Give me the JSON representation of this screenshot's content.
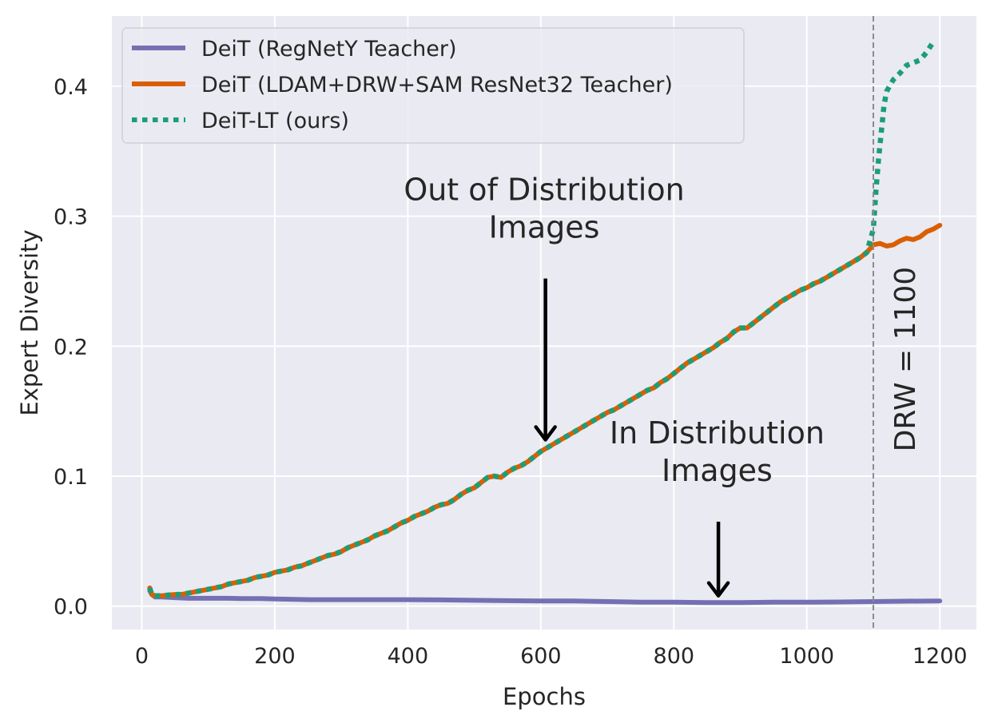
{
  "chart_data": {
    "type": "line",
    "title": "",
    "xlabel": "Epochs",
    "ylabel": "Expert Diversity",
    "xlim": [
      -45,
      1255
    ],
    "ylim": [
      -0.018,
      0.454
    ],
    "xticks": [
      0,
      200,
      400,
      600,
      800,
      1000,
      1200
    ],
    "xtick_labels": [
      "0",
      "200",
      "400",
      "600",
      "800",
      "1000",
      "1200"
    ],
    "yticks": [
      0.0,
      0.1,
      0.2,
      0.3,
      0.4
    ],
    "ytick_labels": [
      "0.0",
      "0.1",
      "0.2",
      "0.3",
      "0.4"
    ],
    "grid": true,
    "legend_position": "top-left",
    "colors": {
      "plot_bg": "#eaeaf2",
      "grid": "#ffffff",
      "regnety": "#7570b3",
      "ldam": "#d95f02",
      "deit_lt": "#1b9e77",
      "vline": "#8c8c8c",
      "arrow": "#000000"
    },
    "series": [
      {
        "name": "DeiT (RegNetY Teacher)",
        "style": "solid",
        "x": [
          12,
          15,
          20,
          30,
          50,
          70,
          100,
          130,
          150,
          180,
          200,
          250,
          300,
          350,
          400,
          450,
          500,
          550,
          600,
          650,
          700,
          750,
          800,
          850,
          900,
          950,
          1000,
          1050,
          1100,
          1150,
          1200
        ],
        "y": [
          0.012,
          0.009,
          0.007,
          0.007,
          0.0065,
          0.006,
          0.006,
          0.006,
          0.0058,
          0.0058,
          0.0055,
          0.005,
          0.005,
          0.005,
          0.005,
          0.0048,
          0.0045,
          0.0042,
          0.004,
          0.004,
          0.0035,
          0.003,
          0.003,
          0.0028,
          0.0028,
          0.003,
          0.003,
          0.0032,
          0.0035,
          0.0038,
          0.004
        ]
      },
      {
        "name": "DeiT (LDAM+DRW+SAM ResNet32 Teacher)",
        "style": "solid",
        "x": [
          12,
          15,
          20,
          30,
          40,
          50,
          60,
          70,
          80,
          90,
          100,
          110,
          120,
          130,
          140,
          150,
          160,
          170,
          180,
          190,
          200,
          210,
          220,
          230,
          240,
          250,
          260,
          270,
          280,
          290,
          300,
          310,
          320,
          330,
          340,
          350,
          360,
          370,
          380,
          390,
          400,
          410,
          420,
          430,
          440,
          450,
          460,
          470,
          480,
          490,
          500,
          510,
          520,
          530,
          540,
          550,
          560,
          570,
          580,
          590,
          600,
          610,
          620,
          630,
          640,
          650,
          660,
          670,
          680,
          690,
          700,
          710,
          720,
          730,
          740,
          750,
          760,
          770,
          780,
          790,
          800,
          810,
          820,
          830,
          840,
          850,
          860,
          870,
          880,
          890,
          900,
          910,
          920,
          930,
          940,
          950,
          960,
          970,
          980,
          990,
          1000,
          1010,
          1020,
          1030,
          1040,
          1050,
          1060,
          1070,
          1080,
          1090,
          1100,
          1110,
          1120,
          1130,
          1140,
          1150,
          1160,
          1170,
          1180,
          1190,
          1200
        ],
        "y": [
          0.014,
          0.009,
          0.008,
          0.008,
          0.0085,
          0.009,
          0.009,
          0.01,
          0.011,
          0.012,
          0.013,
          0.014,
          0.015,
          0.017,
          0.018,
          0.019,
          0.02,
          0.022,
          0.023,
          0.024,
          0.026,
          0.027,
          0.028,
          0.03,
          0.031,
          0.033,
          0.035,
          0.037,
          0.039,
          0.04,
          0.042,
          0.045,
          0.047,
          0.049,
          0.051,
          0.054,
          0.056,
          0.058,
          0.061,
          0.064,
          0.066,
          0.069,
          0.071,
          0.073,
          0.076,
          0.078,
          0.079,
          0.082,
          0.086,
          0.089,
          0.091,
          0.095,
          0.099,
          0.1,
          0.099,
          0.103,
          0.106,
          0.108,
          0.111,
          0.115,
          0.119,
          0.122,
          0.125,
          0.128,
          0.131,
          0.134,
          0.137,
          0.14,
          0.143,
          0.146,
          0.149,
          0.151,
          0.154,
          0.157,
          0.16,
          0.163,
          0.166,
          0.168,
          0.172,
          0.175,
          0.179,
          0.183,
          0.187,
          0.19,
          0.193,
          0.196,
          0.199,
          0.203,
          0.206,
          0.211,
          0.214,
          0.214,
          0.218,
          0.222,
          0.226,
          0.23,
          0.234,
          0.237,
          0.24,
          0.243,
          0.245,
          0.248,
          0.25,
          0.253,
          0.256,
          0.259,
          0.262,
          0.265,
          0.268,
          0.272,
          0.278,
          0.279,
          0.277,
          0.278,
          0.281,
          0.283,
          0.282,
          0.284,
          0.288,
          0.29,
          0.293
        ]
      },
      {
        "name": "DeiT-LT (ours)",
        "style": "dotted",
        "x": [
          12,
          15,
          20,
          30,
          40,
          50,
          60,
          70,
          80,
          90,
          100,
          110,
          120,
          130,
          140,
          150,
          160,
          170,
          180,
          190,
          200,
          210,
          220,
          230,
          240,
          250,
          260,
          270,
          280,
          290,
          300,
          310,
          320,
          330,
          340,
          350,
          360,
          370,
          380,
          390,
          400,
          410,
          420,
          430,
          440,
          450,
          460,
          470,
          480,
          490,
          500,
          510,
          520,
          530,
          540,
          550,
          560,
          570,
          580,
          590,
          600,
          610,
          620,
          630,
          640,
          650,
          660,
          670,
          680,
          690,
          700,
          710,
          720,
          730,
          740,
          750,
          760,
          770,
          780,
          790,
          800,
          810,
          820,
          830,
          840,
          850,
          860,
          870,
          880,
          890,
          900,
          910,
          920,
          930,
          940,
          950,
          960,
          970,
          980,
          990,
          1000,
          1010,
          1020,
          1030,
          1040,
          1050,
          1060,
          1070,
          1080,
          1090,
          1100,
          1104,
          1108,
          1112,
          1116,
          1120,
          1130,
          1140,
          1150,
          1160,
          1170,
          1180,
          1190
        ],
        "y": [
          0.014,
          0.009,
          0.008,
          0.008,
          0.0085,
          0.009,
          0.009,
          0.01,
          0.011,
          0.012,
          0.013,
          0.014,
          0.015,
          0.017,
          0.018,
          0.019,
          0.02,
          0.022,
          0.023,
          0.024,
          0.026,
          0.027,
          0.028,
          0.03,
          0.031,
          0.033,
          0.035,
          0.037,
          0.039,
          0.04,
          0.042,
          0.045,
          0.047,
          0.049,
          0.051,
          0.054,
          0.056,
          0.058,
          0.061,
          0.064,
          0.066,
          0.069,
          0.071,
          0.073,
          0.076,
          0.078,
          0.079,
          0.082,
          0.086,
          0.089,
          0.091,
          0.095,
          0.099,
          0.1,
          0.099,
          0.103,
          0.106,
          0.108,
          0.111,
          0.115,
          0.119,
          0.122,
          0.125,
          0.128,
          0.131,
          0.134,
          0.137,
          0.14,
          0.143,
          0.146,
          0.149,
          0.151,
          0.154,
          0.157,
          0.16,
          0.163,
          0.166,
          0.168,
          0.172,
          0.175,
          0.179,
          0.183,
          0.187,
          0.19,
          0.193,
          0.196,
          0.199,
          0.203,
          0.206,
          0.211,
          0.214,
          0.214,
          0.218,
          0.222,
          0.226,
          0.23,
          0.234,
          0.237,
          0.24,
          0.243,
          0.245,
          0.248,
          0.25,
          0.253,
          0.256,
          0.259,
          0.262,
          0.265,
          0.268,
          0.272,
          0.29,
          0.32,
          0.345,
          0.365,
          0.385,
          0.396,
          0.405,
          0.41,
          0.416,
          0.418,
          0.42,
          0.426,
          0.434
        ]
      }
    ],
    "vline": {
      "x": 1100,
      "label": "DRW = 1100"
    },
    "annotations": [
      {
        "id": "ood",
        "lines": [
          "Out of Distribution",
          "Images"
        ],
        "x": 605,
        "y": 0.3,
        "arrow_from": [
          607,
          0.252
        ],
        "arrow_to": [
          607,
          0.128
        ]
      },
      {
        "id": "id",
        "lines": [
          "In Distribution",
          "Images"
        ],
        "x": 865,
        "y": 0.113,
        "arrow_from": [
          867,
          0.065
        ],
        "arrow_to": [
          867,
          0.008
        ]
      }
    ]
  }
}
